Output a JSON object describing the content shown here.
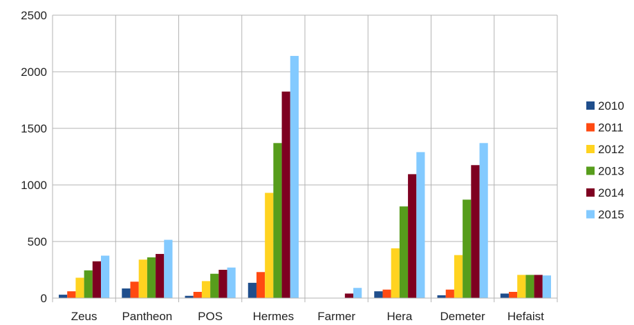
{
  "chart_data": {
    "type": "bar",
    "categories": [
      "Zeus",
      "Pantheon",
      "POS",
      "Hermes",
      "Farmer",
      "Hera",
      "Demeter",
      "Hefaist"
    ],
    "series": [
      {
        "name": "2010",
        "color": "#1f4e8c",
        "values": [
          30,
          85,
          20,
          135,
          0,
          60,
          25,
          40
        ]
      },
      {
        "name": "2011",
        "color": "#ff4a12",
        "values": [
          60,
          145,
          55,
          230,
          0,
          75,
          75,
          55
        ]
      },
      {
        "name": "2012",
        "color": "#ffd320",
        "values": [
          180,
          340,
          150,
          930,
          0,
          440,
          380,
          205
        ]
      },
      {
        "name": "2013",
        "color": "#579d1c",
        "values": [
          245,
          360,
          215,
          1370,
          0,
          810,
          870,
          205
        ]
      },
      {
        "name": "2014",
        "color": "#7e0021",
        "values": [
          325,
          390,
          250,
          1825,
          40,
          1095,
          1175,
          205
        ]
      },
      {
        "name": "2015",
        "color": "#83caff",
        "values": [
          375,
          515,
          270,
          2140,
          90,
          1290,
          1370,
          200
        ]
      }
    ],
    "y_ticks": [
      "0",
      "500",
      "1000",
      "1500",
      "2000",
      "2500"
    ],
    "ylim": [
      0,
      2500
    ],
    "grid": true,
    "legend_position": "right"
  }
}
